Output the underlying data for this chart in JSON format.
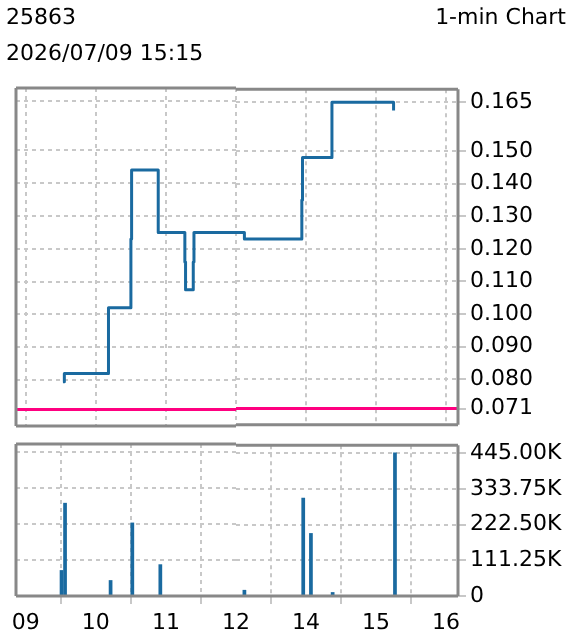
{
  "chart_data": [
    {
      "type": "step",
      "title": "25863",
      "annotations": [
        "2026/07/09 15:15"
      ],
      "x": [
        9.53,
        9.55,
        10.18,
        10.5,
        10.51,
        10.89,
        11.27,
        11.28,
        11.39,
        11.4,
        12
      ],
      "series": [
        {
          "color": "#1a6aa0",
          "values": [
            0.0795,
            0.082,
            0.102,
            0.123,
            0.144,
            0.125,
            0.116,
            0.1075,
            0.116,
            0.125,
            0.125
          ]
        }
      ],
      "xlim": [
        8.86,
        12
      ],
      "xticks": [
        9,
        10,
        11,
        12
      ],
      "ylim": [
        0.066,
        0.169
      ],
      "yticks": [
        0.071,
        0.08,
        0.09,
        0.1,
        0.11,
        0.12,
        0.13,
        0.14,
        0.15,
        0.165
      ],
      "ref_lines": [
        {
          "axis": "y",
          "value": 0.071,
          "color": "#ff0080"
        }
      ],
      "grid": true,
      "tick_labels": false
    },
    {
      "type": "step",
      "title": "1-min Chart",
      "x": [
        13,
        13.12,
        13.94,
        13.95,
        14.37,
        15.25
      ],
      "series": [
        {
          "color": "#1a6aa0",
          "values": [
            0.125,
            0.123,
            0.135,
            0.148,
            0.165,
            0.1625
          ]
        }
      ],
      "xlim": [
        13,
        16.17
      ],
      "xticks": [
        14,
        15,
        16
      ],
      "ylim": [
        0.066,
        0.169
      ],
      "yticks": [
        {
          "value": 0.071,
          "label": "0.071"
        },
        {
          "value": 0.08,
          "label": "0.080"
        },
        {
          "value": 0.09,
          "label": "0.090"
        },
        {
          "value": 0.1,
          "label": "0.100"
        },
        {
          "value": 0.11,
          "label": "0.110"
        },
        {
          "value": 0.12,
          "label": "0.120"
        },
        {
          "value": 0.13,
          "label": "0.130"
        },
        {
          "value": 0.14,
          "label": "0.140"
        },
        {
          "value": 0.15,
          "label": "0.150"
        },
        {
          "value": 0.165,
          "label": "0.165"
        }
      ],
      "ref_lines": [
        {
          "axis": "y",
          "value": 0.071,
          "color": "#ff0080"
        }
      ],
      "grid": true,
      "tick_labels": "y"
    },
    {
      "type": "bar",
      "x": [
        9.51,
        9.56,
        10.21,
        10.52,
        10.92
      ],
      "values": [
        78000,
        286000,
        47000,
        225000,
        96000
      ],
      "color": "#1a6aa0",
      "xlim": [
        8.86,
        12
      ],
      "xticks": [
        {
          "value": 9,
          "label": "09"
        },
        10,
        11,
        12
      ],
      "ylim": [
        0,
        470000
      ],
      "yticks": [
        0,
        111250,
        222500,
        333750,
        445000
      ],
      "grid": true,
      "tick_labels": "x"
    },
    {
      "type": "bar",
      "x": [
        13.12,
        13.96,
        14.07,
        14.38,
        15.27
      ],
      "values": [
        17000,
        304000,
        194000,
        10000,
        445000
      ],
      "color": "#1a6aa0",
      "xlim": [
        13,
        16.17
      ],
      "xticks": [
        14,
        15,
        16
      ],
      "ylim": [
        0,
        470000
      ],
      "yticks": [
        0,
        {
          "value": 111250,
          "label": "111.25K"
        },
        {
          "value": 222500,
          "label": "222.50K"
        },
        {
          "value": 333750,
          "label": "333.75K"
        },
        {
          "value": 445000,
          "label": "445.00K"
        }
      ],
      "grid": true
    }
  ]
}
